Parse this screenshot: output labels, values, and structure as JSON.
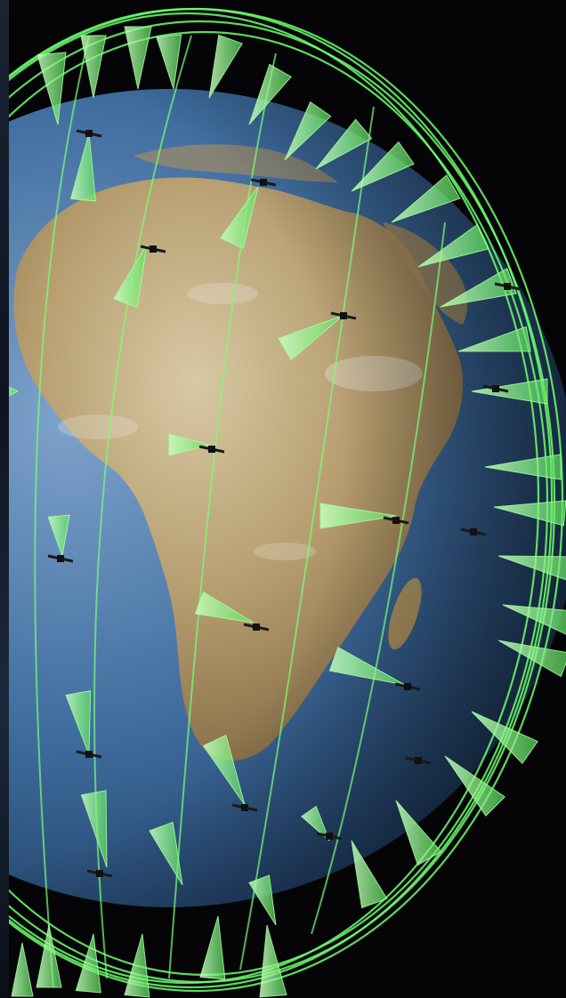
{
  "scene": {
    "subject": "",
    "colors": {
      "space": "#050507",
      "ocean_light": "#5f86b4",
      "ocean_dark": "#21456f",
      "land_light": "#c9b892",
      "land_dark": "#8a6f45",
      "orbit": "#6dff6d",
      "beam": "#8cff8c",
      "satellite": "#111111"
    },
    "icons": [
      "earth-globe",
      "satellite-icon",
      "coverage-beam",
      "orbit-ring"
    ]
  }
}
